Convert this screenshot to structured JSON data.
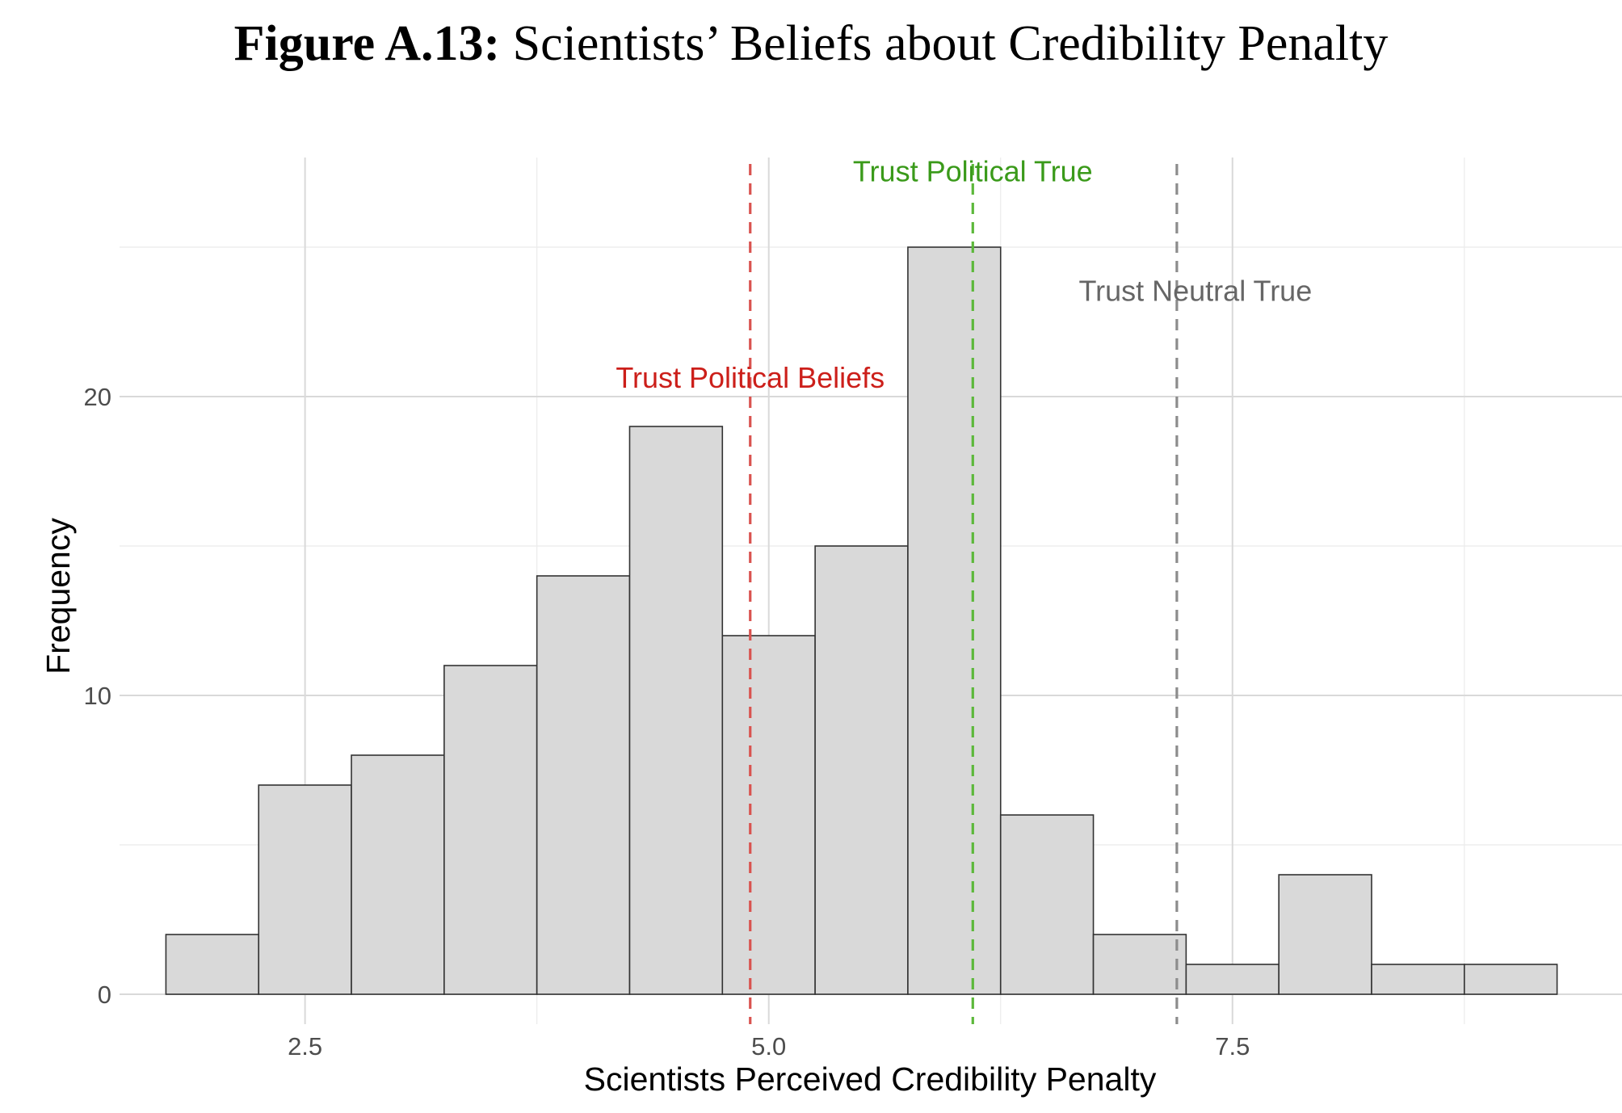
{
  "figure": {
    "label": "Figure A.13:",
    "title": "Scientists’ Beliefs about Credibility Penalty"
  },
  "chart_data": {
    "type": "bar",
    "xlabel": "Scientists Perceived Credibility Penalty",
    "ylabel": "Frequency",
    "xlim": [
      1.5,
      9.6
    ],
    "ylim": [
      -1,
      28
    ],
    "x_ticks": [
      {
        "value": 2.5,
        "label": "2.5"
      },
      {
        "value": 5.0,
        "label": "5.0"
      },
      {
        "value": 7.5,
        "label": "7.5"
      }
    ],
    "y_ticks": [
      {
        "value": 0,
        "label": "0"
      },
      {
        "value": 10,
        "label": "10"
      },
      {
        "value": 20,
        "label": "20"
      }
    ],
    "x_minor_gridlines": [
      3.75,
      6.25,
      8.75
    ],
    "y_minor_gridlines": [
      5,
      15,
      25
    ],
    "grid": true,
    "bin_width": 0.5,
    "bins": [
      {
        "start": 1.75,
        "end": 2.25,
        "count": 2
      },
      {
        "start": 2.25,
        "end": 2.75,
        "count": 7
      },
      {
        "start": 2.75,
        "end": 3.25,
        "count": 8
      },
      {
        "start": 3.25,
        "end": 3.75,
        "count": 11
      },
      {
        "start": 3.75,
        "end": 4.25,
        "count": 14
      },
      {
        "start": 4.25,
        "end": 4.75,
        "count": 19
      },
      {
        "start": 4.75,
        "end": 5.25,
        "count": 12
      },
      {
        "start": 5.25,
        "end": 5.75,
        "count": 15
      },
      {
        "start": 5.75,
        "end": 6.25,
        "count": 25
      },
      {
        "start": 6.25,
        "end": 6.75,
        "count": 6
      },
      {
        "start": 6.75,
        "end": 7.25,
        "count": 2
      },
      {
        "start": 7.25,
        "end": 7.75,
        "count": 1
      },
      {
        "start": 7.75,
        "end": 8.25,
        "count": 4
      },
      {
        "start": 8.25,
        "end": 8.75,
        "count": 1
      },
      {
        "start": 8.75,
        "end": 9.25,
        "count": 1
      }
    ],
    "bar_fill": "#d9d9d9",
    "bar_stroke": "#333333",
    "reference_lines": [
      {
        "name": "Trust Political Beliefs",
        "label": "Trust Political Beliefs",
        "x": 4.9,
        "color": "#cc1f1a",
        "line_color": "#d9534f",
        "label_y": 20.3
      },
      {
        "name": "Trust Political True",
        "label": "Trust Political True",
        "x": 6.1,
        "color": "#3a9a1a",
        "line_color": "#5cb83a",
        "label_y": 27.2
      },
      {
        "name": "Trust Neutral True",
        "label": "Trust Neutral True",
        "x": 7.2,
        "color": "#666666",
        "line_color": "#8c8c8c",
        "label_y": 23.2,
        "label_x": 7.3
      }
    ]
  }
}
